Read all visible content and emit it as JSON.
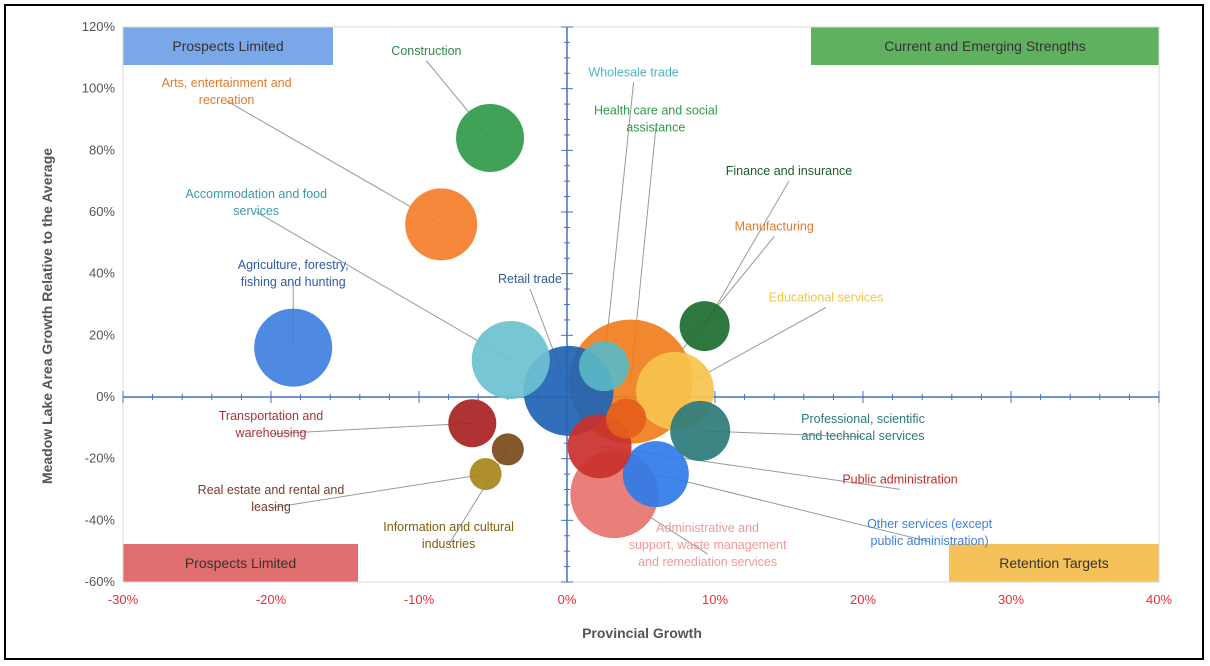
{
  "chart_data": {
    "type": "scatter",
    "subtype": "bubble",
    "xlabel": "Provincial Growth",
    "ylabel": "Meadow Lake Area Growth Relative to the Average",
    "xlim": [
      -30,
      40
    ],
    "ylim": [
      -60,
      120
    ],
    "x_ticks": [
      "-30%",
      "-20%",
      "-10%",
      "0%",
      "10%",
      "20%",
      "30%",
      "40%"
    ],
    "y_ticks": [
      "-60%",
      "-40%",
      "-20%",
      "0%",
      "20%",
      "40%",
      "60%",
      "80%",
      "100%",
      "120%"
    ],
    "quadrants": [
      {
        "label": "Prospects Limited",
        "corner": "top-left",
        "color": "#7aa7e8"
      },
      {
        "label": "Current and Emerging Strengths",
        "corner": "top-right",
        "color": "#5fb05f"
      },
      {
        "label": "Prospects Limited",
        "corner": "bottom-left",
        "color": "#e06e6e"
      },
      {
        "label": "Retention Targets",
        "corner": "bottom-right",
        "color": "#f5c15a"
      }
    ],
    "series": [
      {
        "name": "Health care and social assistance",
        "x": 4.3,
        "y": 5,
        "size": 62,
        "color": "#f07d1c",
        "label_color": "#2e9a48",
        "label_x": 6,
        "label_y": 89
      },
      {
        "name": "Administrative and support, waste management and remediation services",
        "x": 3.2,
        "y": -31.5,
        "size": 44,
        "color": "#e8736f",
        "label_color": "#f19a97",
        "label_x": 9.5,
        "label_y": -49
      },
      {
        "name": "Retail trade",
        "x": 0.1,
        "y": 2,
        "size": 45,
        "color": "#1f63b5",
        "label_color": "#2e5a9c",
        "label_x": -2.5,
        "label_y": 37
      },
      {
        "name": "Accommodation and food services",
        "x": -3.8,
        "y": 12,
        "size": 39,
        "color": "#6cc0cf",
        "label_color": "#3a9aa8",
        "label_x": -21,
        "label_y": 62
      },
      {
        "name": "Agriculture, forestry, fishing and hunting",
        "x": -18.5,
        "y": 16,
        "size": 39,
        "color": "#3f7fe0",
        "label_color": "#2f5aa8",
        "label_x": -18.5,
        "label_y": 39
      },
      {
        "name": "Educational services",
        "x": 7.3,
        "y": 2,
        "size": 39,
        "color": "#f7c34d",
        "label_color": "#f2c548",
        "label_x": 17.5,
        "label_y": 31
      },
      {
        "name": "Construction",
        "x": -5.2,
        "y": 84,
        "size": 34,
        "color": "#2f9a48",
        "label_color": "#2e8a48",
        "label_x": -9.5,
        "label_y": 111
      },
      {
        "name": "Arts, entertainment and recreation",
        "x": -8.5,
        "y": 56,
        "size": 36,
        "color": "#f57e2a",
        "label_color": "#e07b2e",
        "label_x": -23,
        "label_y": 98
      },
      {
        "name": "Wholesale trade",
        "x": 2.5,
        "y": 10,
        "size": 25,
        "color": "#5ab8c4",
        "label_color": "#4fb4c2",
        "label_x": 4.5,
        "label_y": 104
      },
      {
        "name": "Finance and insurance",
        "x": 9.3,
        "y": 23,
        "size": 25,
        "color": "#1c6b2e",
        "label_color": "#1d5b30",
        "label_x": 15,
        "label_y": 72
      },
      {
        "name": "Manufacturing",
        "x": 4,
        "y": -7,
        "size": 20,
        "color": "#e65f1c",
        "label_color": "#e07b2e",
        "label_x": 14,
        "label_y": 54
      },
      {
        "name": "Professional, scientific and technical services",
        "x": 9,
        "y": -11,
        "size": 30,
        "color": "#2c7a79",
        "label_color": "#2c7a79",
        "label_x": 20,
        "label_y": -11
      },
      {
        "name": "Public administration",
        "x": 2.2,
        "y": -16,
        "size": 32,
        "color": "#c9302c",
        "label_color": "#c32b2b",
        "label_x": 22.5,
        "label_y": -28
      },
      {
        "name": "Other services (except public administration)",
        "x": 6,
        "y": -25,
        "size": 33,
        "color": "#2f7be8",
        "label_color": "#3f7fe0",
        "label_x": 24.5,
        "label_y": -45
      },
      {
        "name": "Transportation and warehousing",
        "x": -6.4,
        "y": -8.5,
        "size": 24,
        "color": "#a82222",
        "label_color": "#a83434",
        "label_x": -20,
        "label_y": -10
      },
      {
        "name": "Information and cultural industries",
        "x": -4,
        "y": -17,
        "size": 16,
        "color": "#7a4a18",
        "label_color": "#806010",
        "label_x": -8,
        "label_y": -46
      },
      {
        "name": "Real estate and rental and leasing",
        "x": -5.5,
        "y": -25,
        "size": 16,
        "color": "#a8841c",
        "label_color": "#7a3b2e",
        "label_x": -20,
        "label_y": -34
      }
    ]
  }
}
